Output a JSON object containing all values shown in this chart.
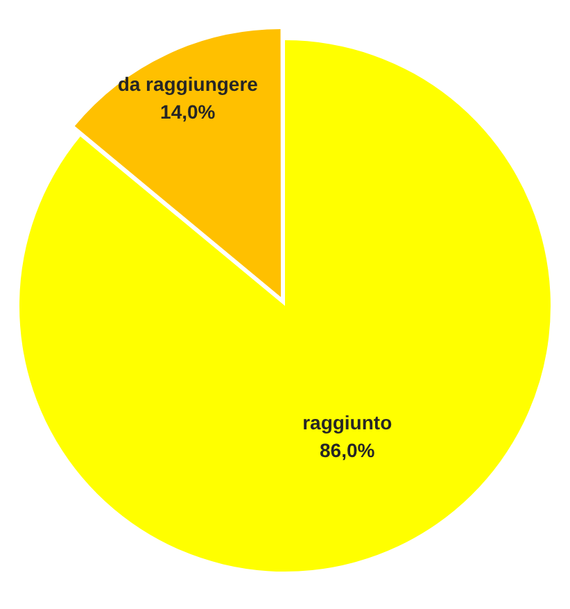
{
  "chart_data": {
    "type": "pie",
    "categories": [
      "raggiunto",
      "da raggiungere"
    ],
    "values": [
      86,
      14
    ],
    "colors": [
      "#ffff00",
      "#ffc000"
    ],
    "value_labels": [
      "86,0%",
      "14,0%"
    ],
    "legend": false
  }
}
